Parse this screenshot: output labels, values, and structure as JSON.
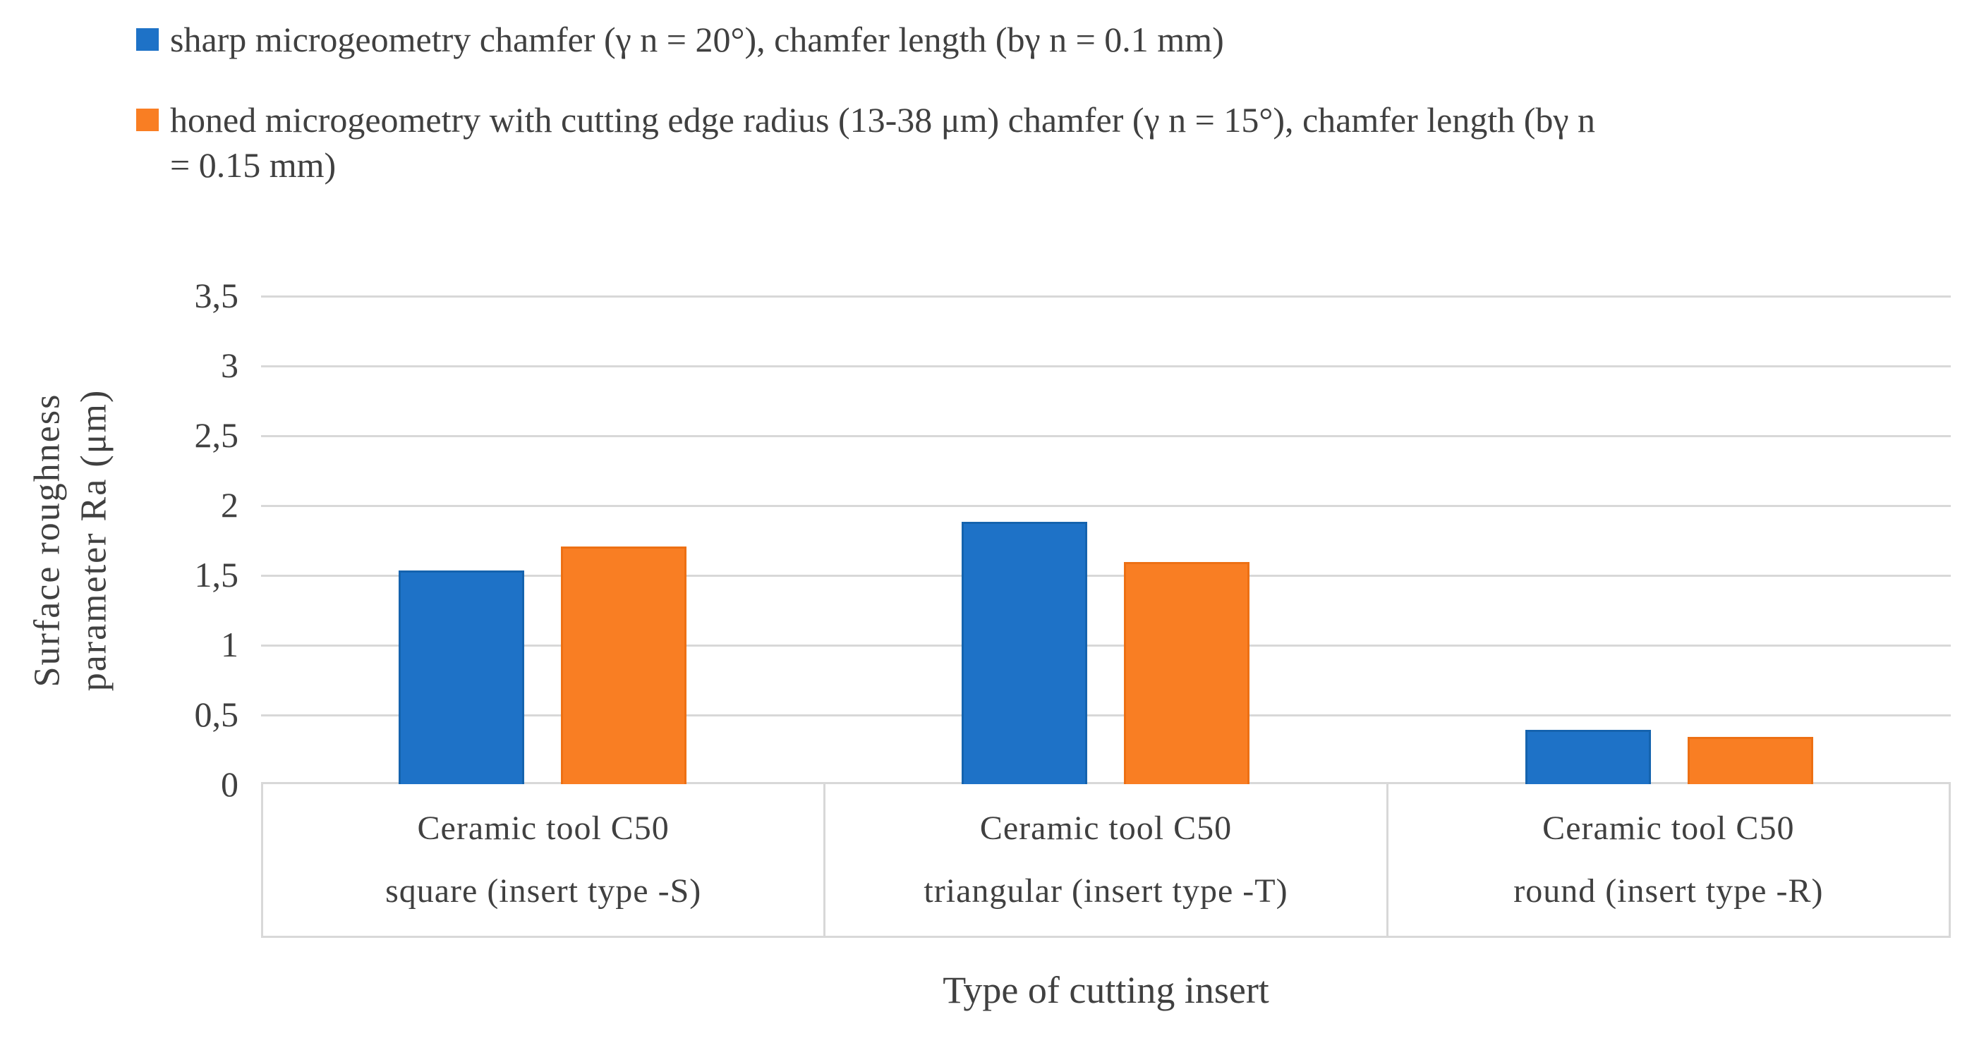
{
  "legend": {
    "items": [
      {
        "label": "sharp microgeometry chamfer (γ n = 20°), chamfer length (bγ n = 0.1 mm)",
        "color": "#1e72c7"
      },
      {
        "label": "honed microgeometry with cutting edge radius (13-38 μm) chamfer (γ n = 15°), chamfer length (bγ n\n= 0.15 mm)",
        "color": "#f97e23"
      }
    ]
  },
  "chart_data": {
    "type": "bar",
    "title": "",
    "xlabel": "Type of cutting insert",
    "ylabel": "Surface roughness parameter Ra (μm)",
    "ylabel_lines": [
      "Surface roughness",
      "parameter Ra (μm)"
    ],
    "ylim": [
      0,
      3.5
    ],
    "grid": true,
    "legend_position": "top-left",
    "decimal_separator": ",",
    "yticks": [
      "3,5",
      "3",
      "2,5",
      "2",
      "1,5",
      "1",
      "0,5",
      "0"
    ],
    "ytick_values": [
      3.5,
      3,
      2.5,
      2,
      1.5,
      1,
      0.5,
      0
    ],
    "categories": [
      {
        "key": "square",
        "line1": "Ceramic tool C50",
        "line2": "square (insert type -S)"
      },
      {
        "key": "triangular",
        "line1": "Ceramic tool C50",
        "line2": "triangular (insert type -T)"
      },
      {
        "key": "round",
        "line1": "Ceramic tool C50",
        "line2": "round (insert type -R)"
      }
    ],
    "series": [
      {
        "key": "sharp",
        "name": "sharp microgeometry chamfer (γ n = 20°), chamfer length (bγ n = 0.1 mm)",
        "color": "#1e72c7",
        "border_color": "#1563ae",
        "values": [
          1.53,
          1.88,
          0.39
        ]
      },
      {
        "key": "honed",
        "name": "honed microgeometry with cutting edge radius (13-38 μm) chamfer (γ n = 15°), chamfer length (bγ n = 0.15 mm)",
        "color": "#f97e23",
        "border_color": "#ed7014",
        "values": [
          1.7,
          1.59,
          0.34
        ]
      }
    ],
    "colors": {
      "gridline": "#d8d8d8",
      "text": "#404040",
      "background": "#ffffff"
    }
  }
}
